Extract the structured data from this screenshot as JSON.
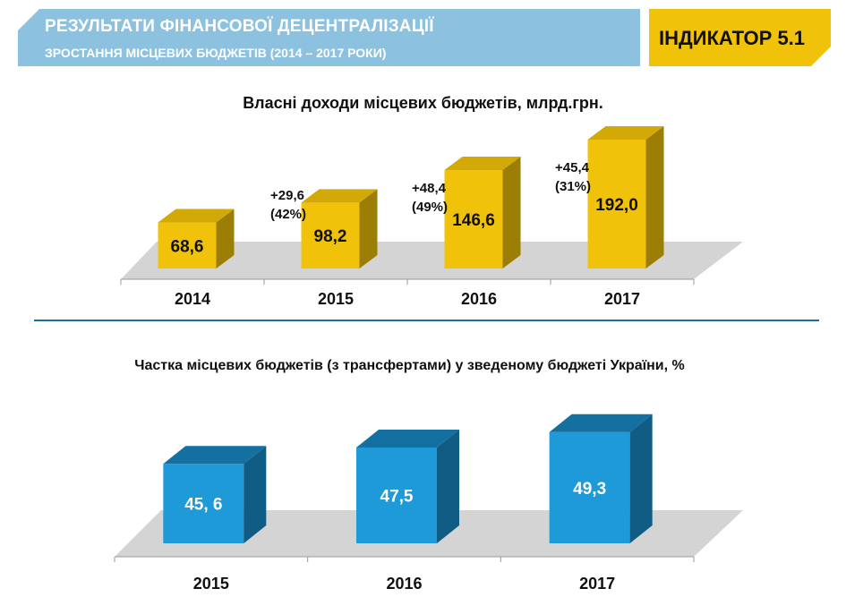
{
  "header": {
    "title": "РЕЗУЛЬТАТИ ФІНАНСОВОЇ ДЕЦЕНТРАЛІЗАЦІЇ",
    "subtitle": "ЗРОСТАННЯ МІСЦЕВИХ БЮДЖЕТІВ (2014 – 2017 РОКИ)",
    "indicator": "ІНДИКАТОР 5.1"
  },
  "colors": {
    "header_blue": "#8cc1e0",
    "indicator_yellow": "#f0c20a",
    "bar_yellow_front": "#f0c20a",
    "bar_yellow_top": "#d3a908",
    "bar_yellow_side": "#9c7d06",
    "bar_blue_front": "#1f9ad8",
    "bar_blue_top": "#1470a0",
    "bar_blue_side": "#105c84",
    "floor": "#d4d4d4",
    "divider": "#1f6f99"
  },
  "chart_data": [
    {
      "type": "bar",
      "title": "Власні доходи місцевих бюджетів, млрд.грн.",
      "categories": [
        "2014",
        "2015",
        "2016",
        "2017"
      ],
      "values": [
        68.6,
        98.2,
        146.6,
        192.0
      ],
      "value_labels": [
        "68,6",
        "98,2",
        "146,6",
        "192,0"
      ],
      "annotations": [
        {
          "between": [
            "2014",
            "2015"
          ],
          "lines": [
            "+29,6",
            "(42%)"
          ]
        },
        {
          "between": [
            "2015",
            "2016"
          ],
          "lines": [
            "+48,4",
            "(49%)"
          ]
        },
        {
          "between": [
            "2016",
            "2017"
          ],
          "lines": [
            "+45,4",
            "(31%)"
          ]
        }
      ],
      "style": "3d-column"
    },
    {
      "type": "bar",
      "title": "Частка місцевих бюджетів (з трансфертами) у зведеному бюджеті України, %",
      "categories": [
        "2015",
        "2016",
        "2017"
      ],
      "values": [
        45.6,
        47.5,
        49.3
      ],
      "value_labels": [
        "45, 6",
        "47,5",
        "49,3"
      ],
      "style": "3d-column"
    }
  ]
}
